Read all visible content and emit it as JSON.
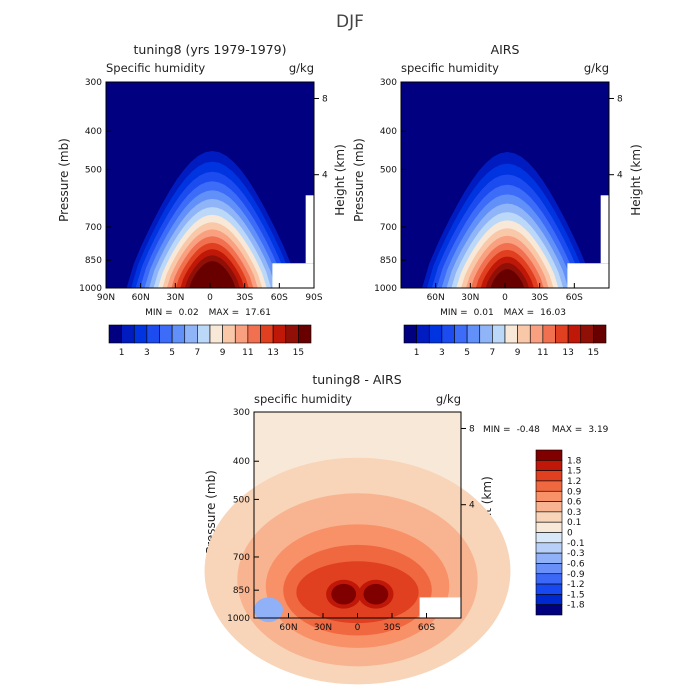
{
  "figure_title": "DJF",
  "chart_data": [
    {
      "type": "heatmap",
      "title": "tuning8 (yrs 1979-1979)",
      "subtitle_left": "Specific humidity",
      "subtitle_right": "g/kg",
      "ylabel": "Pressure (mb)",
      "ylabel_right": "Height (km)",
      "yticks": [
        "300",
        "400",
        "500",
        "700",
        "850",
        "1000"
      ],
      "yticks_right": [
        "8",
        "4"
      ],
      "xticks": [
        "90N",
        "60N",
        "30N",
        "0",
        "30S",
        "60S",
        "90S"
      ],
      "stats": {
        "min_label": "MIN =",
        "min": "0.02",
        "max_label": "MAX =",
        "max": "17.61"
      },
      "colorbar_labels": [
        "1",
        "3",
        "5",
        "7",
        "9",
        "11",
        "13",
        "15"
      ],
      "levels": [
        1,
        2,
        3,
        4,
        5,
        6,
        7,
        8,
        9,
        10,
        11,
        12,
        13,
        14,
        15
      ],
      "peak": 17.61,
      "min": 0.02
    },
    {
      "type": "heatmap",
      "title": "AIRS",
      "subtitle_left": "specific humidity",
      "subtitle_right": "g/kg",
      "ylabel": "Pressure (mb)",
      "ylabel_right": "Height (km)",
      "yticks": [
        "300",
        "400",
        "500",
        "700",
        "850",
        "1000"
      ],
      "yticks_right": [
        "8",
        "4"
      ],
      "xticks": [
        "60N",
        "30N",
        "0",
        "30S",
        "60S"
      ],
      "stats": {
        "min_label": "MIN =",
        "min": "0.01",
        "max_label": "MAX =",
        "max": "16.03"
      },
      "colorbar_labels": [
        "1",
        "3",
        "5",
        "7",
        "9",
        "11",
        "13",
        "15"
      ],
      "levels": [
        1,
        2,
        3,
        4,
        5,
        6,
        7,
        8,
        9,
        10,
        11,
        12,
        13,
        14,
        15
      ],
      "peak": 16.03,
      "min": 0.01
    },
    {
      "type": "heatmap",
      "title": "tuning8 - AIRS",
      "subtitle_left": "specific humidity",
      "subtitle_right": "g/kg",
      "ylabel": "Pressure (mb)",
      "ylabel_right": "Height (km)",
      "yticks": [
        "300",
        "400",
        "500",
        "700",
        "850",
        "1000"
      ],
      "yticks_right": [
        "8",
        "4"
      ],
      "xticks": [
        "60N",
        "30N",
        "0",
        "30S",
        "60S"
      ],
      "stats": {
        "min_label": "MIN =",
        "min": "-0.48",
        "max_label": "MAX =",
        "max": "3.19"
      },
      "colorbar_labels": [
        "1.8",
        "1.5",
        "1.2",
        "0.9",
        "0.6",
        "0.3",
        "0.1",
        "0",
        "-0.1",
        "-0.3",
        "-0.6",
        "-0.9",
        "-1.2",
        "-1.5",
        "-1.8"
      ],
      "levels": [
        -1.8,
        -1.5,
        -1.2,
        -0.9,
        -0.6,
        -0.3,
        -0.1,
        0,
        0.1,
        0.3,
        0.6,
        0.9,
        1.2,
        1.5,
        1.8
      ],
      "peak": 3.19,
      "min": -0.48
    }
  ],
  "colors": {
    "fill_scale": [
      "#000080",
      "#001cc0",
      "#0034e0",
      "#1c4cf0",
      "#3c6cf8",
      "#6090f8",
      "#90b4f8",
      "#bcd8f8",
      "#f8e8d8",
      "#f8c8a8",
      "#f8a080",
      "#f07050",
      "#e04020",
      "#c01808",
      "#901008",
      "#680000"
    ],
    "diff_scale": [
      "#000080",
      "#0028d0",
      "#1848f0",
      "#3c68f8",
      "#6890f8",
      "#90b0f8",
      "#b8d0f8",
      "#d8e8f8",
      "#f8e8d8",
      "#f8d4b8",
      "#f8b490",
      "#f89068",
      "#f06840",
      "#e04020",
      "#c01808",
      "#800000"
    ]
  }
}
